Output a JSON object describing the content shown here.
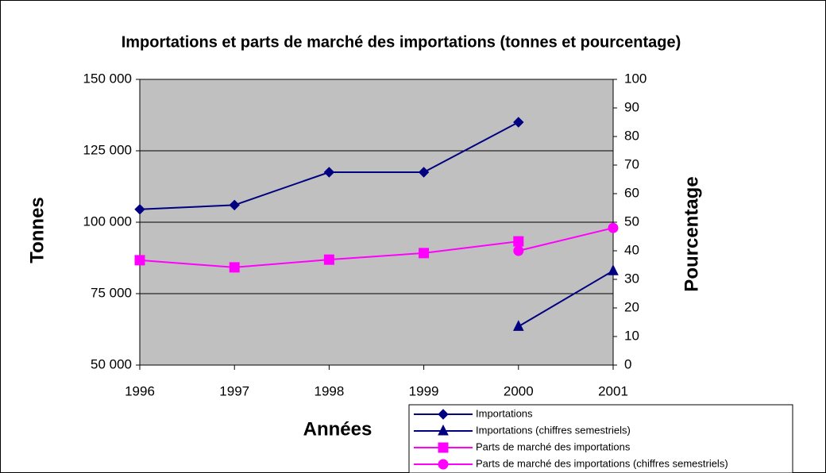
{
  "chart_data": {
    "type": "line",
    "title": "Importations et parts de marché des importations (tonnes et pourcentage)",
    "x_label": "Années",
    "y_label": "Tonnes",
    "y2_label": "Pourcentage",
    "categories": [
      "1996",
      "1997",
      "1998",
      "1999",
      "2000",
      "2001"
    ],
    "ylim": [
      50000,
      150000
    ],
    "yticks": [
      {
        "value": 50000,
        "label": "50 000"
      },
      {
        "value": 75000,
        "label": "75 000"
      },
      {
        "value": 100000,
        "label": "100 000"
      },
      {
        "value": 125000,
        "label": "125 000"
      },
      {
        "value": 150000,
        "label": "150 000"
      }
    ],
    "y2lim": [
      0,
      100
    ],
    "y2ticks": [
      0,
      10,
      20,
      30,
      40,
      50,
      60,
      70,
      80,
      90,
      100
    ],
    "grid": true,
    "plot_background": "#c0c0c0",
    "legend": "bottom-right",
    "series": [
      {
        "name": "Importations",
        "color": "#000080",
        "marker": "diamond",
        "values": [
          104500,
          106000,
          117500,
          117500,
          135000,
          null
        ]
      },
      {
        "name": "Importations (chiffres semestriels)",
        "color": "#000080",
        "marker": "triangle",
        "values": [
          null,
          null,
          null,
          null,
          63500,
          83000
        ]
      },
      {
        "name": "Parts de marché des importations",
        "color": "#ff00ff",
        "marker": "square",
        "axis": "y2",
        "values": [
          36.7,
          34.2,
          36.9,
          39.2,
          43.3,
          null
        ]
      },
      {
        "name": "Parts de marché des importations (chiffres semestriels)",
        "color": "#ff00ff",
        "marker": "circle",
        "axis": "y2",
        "values": [
          null,
          null,
          null,
          null,
          40,
          48
        ]
      }
    ]
  }
}
